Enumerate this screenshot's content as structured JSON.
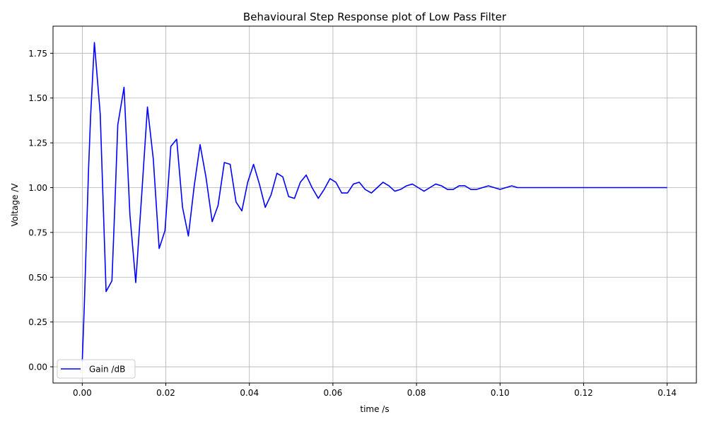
{
  "chart_data": {
    "type": "line",
    "title": "Behavioural Step Response plot of Low Pass Filter",
    "xlabel": "time /s",
    "ylabel": "Voltage /V",
    "xlim": [
      -0.007,
      0.147
    ],
    "ylim": [
      -0.0905,
      1.9012
    ],
    "xticks": [
      0.0,
      0.02,
      0.04,
      0.06,
      0.08,
      0.1,
      0.12,
      0.14
    ],
    "xtick_labels": [
      "0.00",
      "0.02",
      "0.04",
      "0.06",
      "0.08",
      "0.10",
      "0.12",
      "0.14"
    ],
    "yticks": [
      0.0,
      0.25,
      0.5,
      0.75,
      1.0,
      1.25,
      1.5,
      1.75
    ],
    "ytick_labels": [
      "0.00",
      "0.25",
      "0.50",
      "0.75",
      "1.00",
      "1.25",
      "1.50",
      "1.75"
    ],
    "grid": true,
    "legend_position": "lower-left",
    "series": [
      {
        "name": "Gain /dB",
        "color": "#0000ff",
        "x": [
          0.0,
          0.0005,
          0.0015,
          0.002,
          0.0029,
          0.0043,
          0.0057,
          0.0071,
          0.0078,
          0.0085,
          0.01,
          0.0114,
          0.0128,
          0.0142,
          0.0156,
          0.017,
          0.0184,
          0.0198,
          0.0212,
          0.0226,
          0.024,
          0.0254,
          0.0268,
          0.0282,
          0.0296,
          0.0311,
          0.0325,
          0.034,
          0.0354,
          0.0368,
          0.0382,
          0.0396,
          0.041,
          0.0424,
          0.0438,
          0.0452,
          0.0466,
          0.048,
          0.0494,
          0.0508,
          0.0522,
          0.0536,
          0.055,
          0.0565,
          0.0579,
          0.0593,
          0.0607,
          0.0621,
          0.0635,
          0.0649,
          0.0663,
          0.0677,
          0.0692,
          0.0706,
          0.072,
          0.0734,
          0.0748,
          0.0762,
          0.0776,
          0.079,
          0.0804,
          0.0818,
          0.0832,
          0.0846,
          0.086,
          0.0874,
          0.0888,
          0.0902,
          0.0916,
          0.093,
          0.0944,
          0.0958,
          0.0972,
          0.0986,
          0.1,
          0.1014,
          0.1028,
          0.1042,
          0.1056,
          0.107,
          0.1084,
          0.1098,
          0.1112,
          0.1126,
          0.114,
          0.1154,
          0.1168,
          0.1182,
          0.1196,
          0.121,
          0.1224,
          0.1238,
          0.1252,
          0.1266,
          0.128,
          0.1294,
          0.1308,
          0.1322,
          0.1336,
          0.135,
          0.1364,
          0.1378,
          0.1392,
          0.14
        ],
        "y": [
          0.03,
          0.35,
          1.1,
          1.4,
          1.81,
          1.41,
          0.42,
          0.48,
          0.9,
          1.35,
          1.56,
          0.85,
          0.47,
          0.95,
          1.45,
          1.16,
          0.66,
          0.76,
          1.23,
          1.27,
          0.89,
          0.73,
          1.01,
          1.24,
          1.06,
          0.81,
          0.9,
          1.14,
          1.13,
          0.92,
          0.87,
          1.03,
          1.13,
          1.02,
          0.89,
          0.96,
          1.08,
          1.06,
          0.95,
          0.94,
          1.03,
          1.07,
          1.0,
          0.94,
          0.99,
          1.05,
          1.03,
          0.97,
          0.97,
          1.02,
          1.03,
          0.99,
          0.97,
          1.0,
          1.03,
          1.01,
          0.98,
          0.99,
          1.01,
          1.02,
          1.0,
          0.98,
          1.0,
          1.02,
          1.01,
          0.99,
          0.99,
          1.01,
          1.01,
          0.99,
          0.99,
          1.0,
          1.01,
          1.0,
          0.99,
          1.0,
          1.01,
          1.0,
          1.0,
          1.0,
          1.0,
          1.0,
          1.0,
          1.0,
          1.0,
          1.0,
          1.0,
          1.0,
          1.0,
          1.0,
          1.0,
          1.0,
          1.0,
          1.0,
          1.0,
          1.0,
          1.0,
          1.0,
          1.0,
          1.0,
          1.0,
          1.0,
          1.0,
          1.0
        ]
      }
    ]
  }
}
